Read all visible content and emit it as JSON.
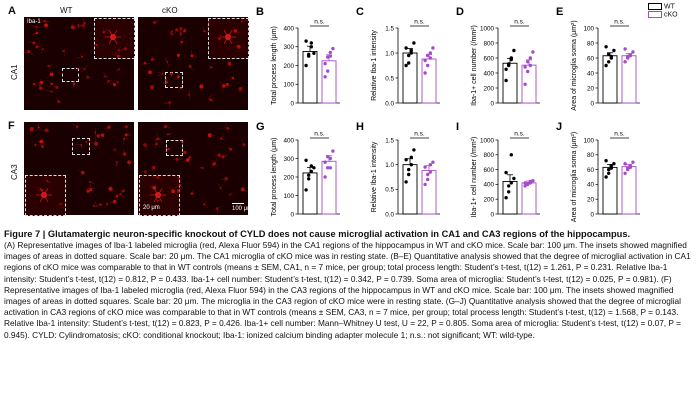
{
  "figure": {
    "panel_labels": {
      "A": "A",
      "B": "B",
      "C": "C",
      "D": "D",
      "E": "E",
      "F": "F",
      "G": "G",
      "H": "H",
      "I": "I",
      "J": "J"
    },
    "col_wt": "WT",
    "col_cko": "cKO",
    "row_ca1": "CA1",
    "row_ca3": "CA3",
    "iba_label": "Iba-1",
    "scale_20": "20 μm",
    "scale_100": "100 μm"
  },
  "legend": {
    "wt": "WT",
    "cko": "cKO"
  },
  "colors": {
    "wt": "#000000",
    "cko": "#a64bc8",
    "micro_bg": "#1a0000",
    "micro_cell": "#d01010"
  },
  "chart_data": [
    {
      "id": "B",
      "type": "bar",
      "ylabel": "Total process length (μm)",
      "yticks": [
        0,
        100,
        200,
        300,
        400
      ],
      "ylim": [
        0,
        400
      ],
      "sig": "n.s.",
      "series": [
        {
          "name": "WT",
          "value": 275,
          "sem": 28,
          "points": [
            200,
            260,
            300,
            265,
            330,
            250,
            320
          ]
        },
        {
          "name": "cKO",
          "value": 225,
          "sem": 32,
          "points": [
            140,
            170,
            250,
            290,
            210,
            245,
            270
          ]
        }
      ]
    },
    {
      "id": "C",
      "type": "bar",
      "ylabel": "Relative Iba-1 intensity",
      "yticks": [
        0.0,
        0.5,
        1.0,
        1.5
      ],
      "ylim": [
        0,
        1.5
      ],
      "sig": "n.s.",
      "series": [
        {
          "name": "WT",
          "value": 1.0,
          "sem": 0.09,
          "points": [
            0.75,
            0.95,
            1.05,
            1.2,
            1.1,
            0.8,
            1.0
          ]
        },
        {
          "name": "cKO",
          "value": 0.88,
          "sem": 0.09,
          "points": [
            0.6,
            0.75,
            0.9,
            1.1,
            0.85,
            0.95,
            1.0
          ]
        }
      ]
    },
    {
      "id": "D",
      "type": "bar",
      "ylabel": "Iba-1+ cell number (/mm²)",
      "yticks": [
        0,
        200,
        400,
        600,
        800,
        1000
      ],
      "ylim": [
        0,
        1000
      ],
      "sig": "n.s.",
      "series": [
        {
          "name": "WT",
          "value": 530,
          "sem": 65,
          "points": [
            300,
            500,
            600,
            700,
            450,
            520,
            580
          ]
        },
        {
          "name": "cKO",
          "value": 505,
          "sem": 70,
          "points": [
            250,
            420,
            600,
            680,
            480,
            550,
            500
          ]
        }
      ]
    },
    {
      "id": "E",
      "type": "bar",
      "ylabel": "Area of microglia soma (μm²)",
      "yticks": [
        0,
        20,
        40,
        60,
        80,
        100
      ],
      "ylim": [
        0,
        100
      ],
      "sig": "n.s.",
      "series": [
        {
          "name": "WT",
          "value": 63,
          "sem": 4,
          "points": [
            50,
            55,
            62,
            70,
            75,
            65,
            60
          ]
        },
        {
          "name": "cKO",
          "value": 63,
          "sem": 3,
          "points": [
            55,
            60,
            63,
            68,
            72,
            62,
            64
          ]
        }
      ]
    },
    {
      "id": "G",
      "type": "bar",
      "ylabel": "Total process length (μm)",
      "yticks": [
        0,
        100,
        200,
        300,
        400
      ],
      "ylim": [
        0,
        400
      ],
      "sig": "n.s.",
      "series": [
        {
          "name": "WT",
          "value": 222,
          "sem": 30,
          "points": [
            130,
            190,
            230,
            250,
            290,
            210,
            260
          ]
        },
        {
          "name": "cKO",
          "value": 285,
          "sem": 30,
          "points": [
            200,
            250,
            300,
            340,
            280,
            310,
            250
          ]
        }
      ]
    },
    {
      "id": "H",
      "type": "bar",
      "ylabel": "Relative Iba-1 intensity",
      "yticks": [
        0.0,
        0.5,
        1.0,
        1.5
      ],
      "ylim": [
        0,
        1.5
      ],
      "sig": "n.s.",
      "series": [
        {
          "name": "WT",
          "value": 1.0,
          "sem": 0.12,
          "points": [
            0.65,
            0.8,
            1.0,
            1.3,
            1.1,
            0.9,
            1.15
          ]
        },
        {
          "name": "cKO",
          "value": 0.88,
          "sem": 0.1,
          "points": [
            0.6,
            0.7,
            0.85,
            1.05,
            0.95,
            0.8,
            1.0
          ]
        }
      ]
    },
    {
      "id": "I",
      "type": "bar",
      "ylabel": "Iba-1+ cell number (/mm²)",
      "yticks": [
        0,
        200,
        400,
        600,
        800,
        1000
      ],
      "ylim": [
        0,
        1000
      ],
      "sig": "n.s.",
      "series": [
        {
          "name": "WT",
          "value": 440,
          "sem": 90,
          "points": [
            220,
            300,
            420,
            480,
            560,
            380,
            800
          ]
        },
        {
          "name": "cKO",
          "value": 420,
          "sem": 25,
          "points": [
            380,
            400,
            420,
            450,
            420,
            410,
            440
          ]
        }
      ]
    },
    {
      "id": "J",
      "type": "bar",
      "ylabel": "Area of microglia soma (μm²)",
      "yticks": [
        0,
        20,
        40,
        60,
        80,
        100
      ],
      "ylim": [
        0,
        100
      ],
      "sig": "n.s.",
      "series": [
        {
          "name": "WT",
          "value": 63,
          "sem": 4,
          "points": [
            50,
            55,
            62,
            68,
            72,
            60,
            65
          ]
        },
        {
          "name": "cKO",
          "value": 64,
          "sem": 3,
          "points": [
            55,
            60,
            63,
            70,
            68,
            62,
            65
          ]
        }
      ]
    }
  ],
  "caption": {
    "title": "Figure 7 | Glutamatergic neuron-specific knockout of CYLD does not cause microglial activation in CA1 and CA3 regions of the hippocampus.",
    "para1": "(A) Representative images of Iba-1 labeled microglia (red, Alexa Fluor 594) in the CA1 regions of the hippocampus in WT and cKO mice. Scale bar: 100 μm. The insets showed magnified images of areas in dotted square. Scale bar: 20 μm. The CA1 microglia of cKO mice was in resting state. (B–E) Quantitative analysis showed that the degree of microglial activation in CA1 regions of cKO mice was comparable to that in WT controls (means ± SEM, CA1, n = 7 mice, per group; total process length: Student’s t-test, t(12) = 1.261, P = 0.231. Relative Iba-1 intensity: Student’s t-test, t(12) = 0.812, P = 0.433. Iba-1+ cell number: Student’s t-test, t(12) = 0.342, P = 0.739. Soma area of microglia: Student’s t-test, t(12) = 0.025, P = 0.981). (F) Representative images of Iba-1 labeled microglia (red, Alexa Fluor 594) in the CA3 regions of the hippocampus in WT and cKO mice. Scale bar: 100 μm. The insets showed magnified images of areas in dotted squares. Scale bar: 20 μm. The microglia in the CA3 region of cKO mice were in resting state. (G–J) Quantitative analysis showed that the degree of microglial activation in CA3 regions of cKO mice was comparable to that in WT controls (means ± SEM, CA3, n = 7 mice, per group; total process length: Student’s t-test, t(12) = 1.568, P = 0.143. Relative Iba-1 intensity: Student’s t-test, t(12) = 0.823, P = 0.426. Iba-1+ cell number: Mann–Whitney U test, U = 22, P = 0.805. Soma area of microglia: Student’s t-test, t(12) = 0.07, P = 0.945). CYLD: Cylindromatosis; cKO: conditional knockout; Iba-1: ionized calcium binding adapter molecule 1; n.s.: not significant; WT: wild-type."
  }
}
